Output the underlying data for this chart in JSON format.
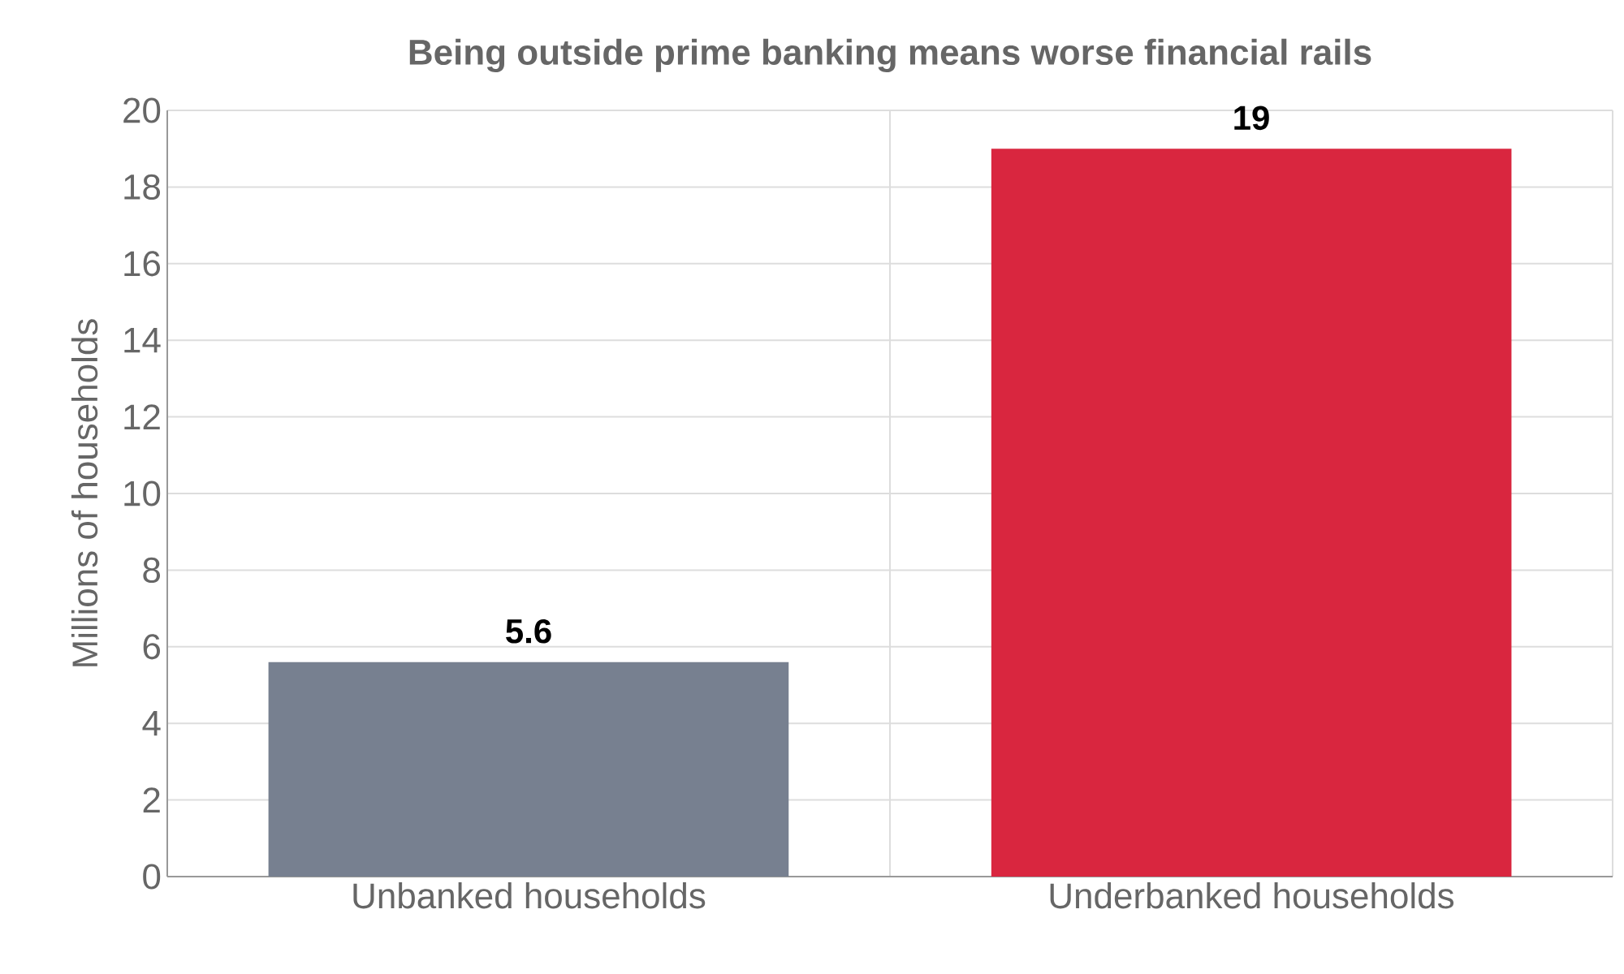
{
  "chart_data": {
    "type": "bar",
    "title": "Being outside prime banking means worse financial rails",
    "ylabel": "Millions of households",
    "categories": [
      "Unbanked households",
      "Underbanked households"
    ],
    "values": [
      5.6,
      19
    ],
    "colors": [
      "#778090",
      "#d9263f"
    ],
    "ylim": [
      0,
      20
    ],
    "yticks": [
      0,
      2,
      4,
      6,
      8,
      10,
      12,
      14,
      16,
      18,
      20
    ],
    "grid": true,
    "data_labels": true
  }
}
